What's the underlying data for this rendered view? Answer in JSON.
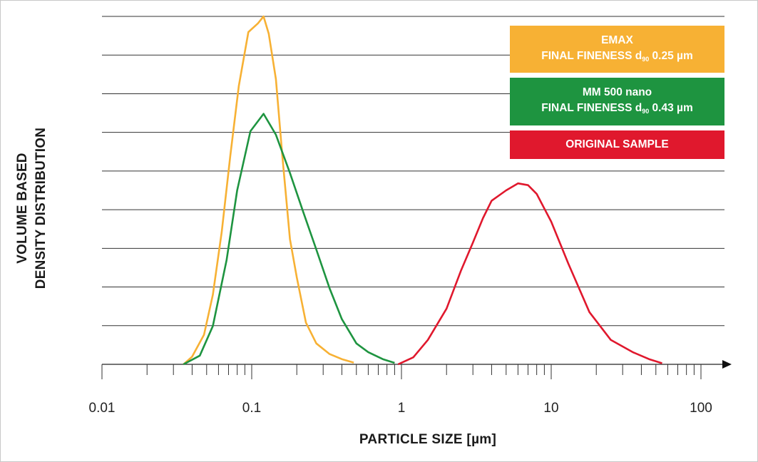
{
  "chart_data": {
    "type": "line",
    "xscale": "log",
    "xlim": [
      0.01,
      100
    ],
    "x_ticks": [
      "0.01",
      "0.1",
      "1",
      "10",
      "100"
    ],
    "xlabel": "PARTICLE SIZE [µm]",
    "ylabel_lines": [
      "VOLUME BASED",
      "DENSITY DISTRIBUTION"
    ],
    "y_gridlines": 9,
    "grid": true,
    "legend_position": "top-right",
    "series": [
      {
        "name_line1": "EMAX",
        "name_line2_prefix": "FINAL FINENESS d",
        "name_line2_sub": "90",
        "name_line2_suffix": " 0.25 µm",
        "color": "#F7B134",
        "points": [
          [
            0.035,
            0.0
          ],
          [
            0.04,
            0.022
          ],
          [
            0.048,
            0.085
          ],
          [
            0.055,
            0.2
          ],
          [
            0.063,
            0.38
          ],
          [
            0.072,
            0.6
          ],
          [
            0.082,
            0.8
          ],
          [
            0.095,
            0.955
          ],
          [
            0.11,
            0.98
          ],
          [
            0.12,
            1.0
          ],
          [
            0.13,
            0.95
          ],
          [
            0.145,
            0.82
          ],
          [
            0.16,
            0.6
          ],
          [
            0.18,
            0.36
          ],
          [
            0.2,
            0.25
          ],
          [
            0.23,
            0.12
          ],
          [
            0.27,
            0.06
          ],
          [
            0.33,
            0.03
          ],
          [
            0.4,
            0.015
          ],
          [
            0.48,
            0.005
          ]
        ]
      },
      {
        "name_line1": "MM 500 nano",
        "name_line2_prefix": "FINAL FINENESS d",
        "name_line2_sub": "90",
        "name_line2_suffix": " 0.43 µm",
        "color": "#1E9440",
        "points": [
          [
            0.035,
            0.0
          ],
          [
            0.045,
            0.025
          ],
          [
            0.055,
            0.11
          ],
          [
            0.068,
            0.3
          ],
          [
            0.08,
            0.5
          ],
          [
            0.098,
            0.67
          ],
          [
            0.12,
            0.72
          ],
          [
            0.145,
            0.66
          ],
          [
            0.18,
            0.55
          ],
          [
            0.22,
            0.44
          ],
          [
            0.27,
            0.33
          ],
          [
            0.33,
            0.22
          ],
          [
            0.4,
            0.13
          ],
          [
            0.5,
            0.06
          ],
          [
            0.6,
            0.035
          ],
          [
            0.75,
            0.015
          ],
          [
            0.9,
            0.004
          ]
        ]
      },
      {
        "name": "ORIGINAL SAMPLE",
        "color": "#E0182D",
        "points": [
          [
            0.95,
            0.0
          ],
          [
            1.2,
            0.02
          ],
          [
            1.5,
            0.07
          ],
          [
            2.0,
            0.16
          ],
          [
            2.5,
            0.27
          ],
          [
            3.0,
            0.35
          ],
          [
            3.5,
            0.42
          ],
          [
            4.0,
            0.47
          ],
          [
            5.0,
            0.5
          ],
          [
            6.0,
            0.52
          ],
          [
            7.0,
            0.515
          ],
          [
            8.0,
            0.49
          ],
          [
            10.0,
            0.41
          ],
          [
            13.0,
            0.29
          ],
          [
            18.0,
            0.15
          ],
          [
            25.0,
            0.07
          ],
          [
            35.0,
            0.035
          ],
          [
            45.0,
            0.015
          ],
          [
            55.0,
            0.003
          ]
        ]
      }
    ]
  }
}
